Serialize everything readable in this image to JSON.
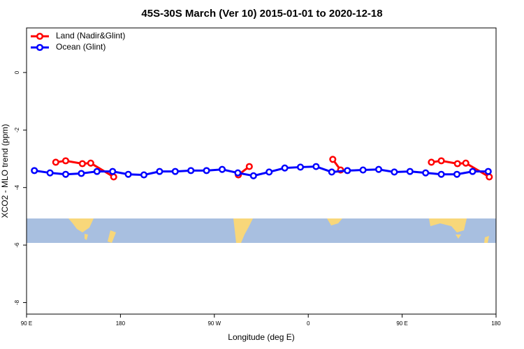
{
  "chart_data": {
    "type": "line",
    "title": "45S-30S March (Ver 10)   2015-01-01 to 2020-12-18",
    "xlabel": "Longitude (deg E)",
    "ylabel": "XCO2 - MLO trend (ppm)",
    "xlim": [
      90,
      540
    ],
    "xticks": [
      {
        "value": 90,
        "label": "90 E"
      },
      180,
      {
        "value": 270,
        "label": "90 W"
      },
      {
        "value": 360,
        "label": "0"
      },
      {
        "value": 450,
        "label": "90 E"
      },
      {
        "value": 540,
        "label": "180"
      }
    ],
    "ylim": [
      -8.4,
      1.55
    ],
    "yticks": [
      0,
      -2,
      -4,
      -6,
      -8
    ],
    "legend": "top-left",
    "series": [
      {
        "name": "Land (Nadir&Glint)",
        "color": "#ff0000",
        "x": [
          118,
          127.5,
          143.5,
          151.5,
          173.5,
          null,
          293,
          303.5,
          null,
          383.5,
          391,
          null,
          478,
          487.5,
          503,
          511,
          533.5
        ],
        "values": [
          -3.12,
          -3.07,
          -3.17,
          -3.15,
          -3.63,
          null,
          -3.56,
          -3.27,
          null,
          -3.02,
          -3.39,
          null,
          -3.12,
          -3.07,
          -3.17,
          -3.15,
          -3.63
        ]
      },
      {
        "name": "Ocean (Glint)",
        "color": "#0000ff",
        "x": [
          97.5,
          112.5,
          127.5,
          142.5,
          157.5,
          172.5,
          187.5,
          202.5,
          217.5,
          232.5,
          247.5,
          262.5,
          277.5,
          292.5,
          307.5,
          322.5,
          337.5,
          352.5,
          367.5,
          382.5,
          397.5,
          412.5,
          427.5,
          442.5,
          457.5,
          472.5,
          487.5,
          502.5,
          517.5,
          532.5
        ],
        "values": [
          -3.41,
          -3.49,
          -3.54,
          -3.51,
          -3.44,
          -3.44,
          -3.54,
          -3.56,
          -3.44,
          -3.44,
          -3.41,
          -3.41,
          -3.37,
          -3.49,
          -3.59,
          -3.46,
          -3.32,
          -3.29,
          -3.27,
          -3.46,
          -3.41,
          -3.39,
          -3.37,
          -3.46,
          -3.44,
          -3.49,
          -3.54,
          -3.54,
          -3.44,
          -3.44
        ]
      }
    ]
  }
}
